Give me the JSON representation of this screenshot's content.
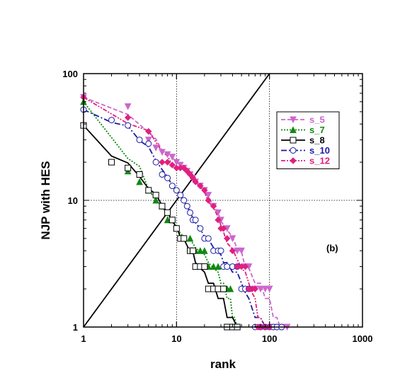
{
  "chart_data": {
    "type": "scatter",
    "xscale": "log",
    "yscale": "log",
    "xlim": [
      1,
      1000
    ],
    "ylim": [
      1,
      100
    ],
    "grid": "major-dotted",
    "xlabel": "rank",
    "ylabel": "NJP with HES",
    "x_ticks": [
      "1",
      "10",
      "100",
      "1000"
    ],
    "y_ticks": [
      "1",
      "10",
      "100"
    ],
    "annotation": "(b)",
    "legend_position": "top-right",
    "reference_line": {
      "x": [
        1,
        100
      ],
      "y": [
        1,
        100
      ],
      "color": "#000000"
    },
    "series": [
      {
        "name": "s_5",
        "color": "#cc66cc",
        "marker": "triangle-down",
        "line": "dashed",
        "x": [
          1,
          3,
          5,
          6,
          7,
          8,
          9,
          10,
          11,
          12,
          13,
          14,
          15,
          16,
          18,
          20,
          22,
          25,
          28,
          30,
          35,
          40,
          45,
          50,
          55,
          60,
          70,
          80,
          90,
          100,
          110,
          120,
          130,
          140,
          155
        ],
        "y": [
          65,
          55,
          30,
          26,
          24,
          23,
          22,
          20,
          19,
          18,
          17,
          16,
          15,
          14,
          13,
          12,
          11,
          9,
          8,
          7,
          6,
          5,
          4,
          4,
          3,
          3,
          2,
          2,
          2,
          2,
          1,
          1,
          1,
          1,
          1
        ]
      },
      {
        "name": "s_7",
        "color": "#118811",
        "marker": "triangle-up",
        "line": "dotted",
        "x": [
          1,
          3,
          4,
          5,
          6,
          7,
          8,
          9,
          10,
          12,
          14,
          16,
          18,
          20,
          22,
          25,
          28,
          30,
          32,
          35,
          38,
          40,
          42,
          45
        ],
        "y": [
          60,
          17,
          14,
          12,
          10,
          9,
          7,
          7,
          6,
          5,
          5,
          4,
          4,
          4,
          3,
          3,
          3,
          2,
          2,
          2,
          2,
          1,
          1,
          1
        ]
      },
      {
        "name": "s_8",
        "color": "#000000",
        "marker": "square-open",
        "line": "solid",
        "x": [
          1,
          2,
          3,
          4,
          5,
          6,
          7,
          8,
          9,
          10,
          11,
          12,
          14,
          15,
          16,
          18,
          20,
          22,
          25,
          28,
          32,
          35,
          40,
          45
        ],
        "y": [
          39,
          20,
          18,
          16,
          12,
          11,
          9,
          8,
          7,
          6,
          5,
          5,
          4,
          4,
          3,
          3,
          3,
          2,
          2,
          2,
          2,
          1,
          1,
          1
        ]
      },
      {
        "name": "s_10",
        "color": "#1a1aa6",
        "marker": "circle-open",
        "line": "dash-dot",
        "x": [
          1,
          2,
          3,
          4,
          5,
          6,
          7,
          8,
          9,
          10,
          11,
          12,
          13,
          14,
          15,
          16,
          18,
          20,
          22,
          25,
          28,
          30,
          32,
          35,
          40,
          45,
          50,
          55,
          60,
          70,
          80,
          90,
          100,
          110,
          120,
          135
        ],
        "y": [
          52,
          43,
          39,
          30,
          28,
          20,
          16,
          15,
          13,
          12,
          11,
          10,
          9,
          8,
          7,
          7,
          6,
          5,
          5,
          4,
          4,
          4,
          3,
          3,
          3,
          3,
          2,
          2,
          2,
          1,
          1,
          1,
          1,
          1,
          1,
          1
        ]
      },
      {
        "name": "s_12",
        "color": "#e0207f",
        "marker": "diamond",
        "line": "dash-dot-dot",
        "x": [
          1,
          3,
          5,
          7,
          8,
          9,
          10,
          11,
          12,
          13,
          14,
          15,
          16,
          18,
          20,
          22,
          25,
          28,
          30,
          32,
          35,
          40,
          45,
          50,
          55,
          60,
          65,
          70,
          75,
          80,
          90,
          100
        ],
        "y": [
          65,
          45,
          35,
          20,
          20,
          19,
          18,
          18,
          18,
          17,
          16,
          15,
          14,
          13,
          12,
          10,
          9,
          7,
          6,
          6,
          5,
          4,
          3,
          3,
          3,
          2,
          2,
          2,
          1,
          1,
          1,
          1
        ]
      }
    ]
  }
}
